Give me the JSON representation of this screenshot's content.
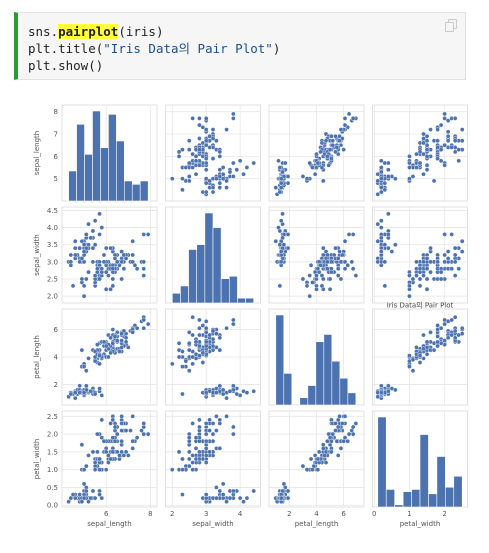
{
  "code": {
    "line1": {
      "pre": "sns.",
      "highlight": "pairplot",
      "post": "(iris)"
    },
    "line2": {
      "pre": "plt.title(",
      "string": "\"Iris Data의 Pair Plot\"",
      "post": ")"
    },
    "line3": "plt.show()",
    "copy_icon": "copy-icon",
    "accent_color": "#2b9a3a"
  },
  "chart_data": {
    "type": "scatter",
    "title": "Iris Data의 Pair Plot",
    "variables": [
      "sepal_length",
      "sepal_width",
      "petal_length",
      "petal_width"
    ],
    "marker_color": "#4c72b0",
    "grid": true,
    "ranges": {
      "sepal_length": [
        4.0,
        8.3
      ],
      "sepal_width": [
        1.8,
        4.6
      ],
      "petal_length": [
        0.5,
        7.5
      ],
      "petal_width": [
        -0.05,
        2.65
      ]
    },
    "ticks": {
      "sepal_length": [
        5,
        6,
        7,
        8
      ],
      "sepal_width": [
        2.0,
        2.5,
        3.0,
        3.5,
        4.0,
        4.5
      ],
      "petal_length": [
        2,
        4,
        6
      ],
      "petal_width": [
        0.0,
        0.5,
        1.0,
        1.5,
        2.0,
        2.5
      ]
    },
    "x_ticks": {
      "sepal_length": [
        6,
        8
      ],
      "sepal_width": [
        2,
        3,
        4
      ],
      "petal_length": [
        2,
        4,
        6
      ],
      "petal_width": [
        0,
        1,
        2
      ]
    },
    "tick_labels": {
      "sepal_length": [
        "5",
        "6",
        "7",
        "8"
      ],
      "sepal_width": [
        "2.0",
        "2.5",
        "3.0",
        "3.5",
        "4.0",
        "4.5"
      ],
      "petal_length": [
        "2",
        "4",
        "6"
      ],
      "petal_width": [
        "0.0",
        "0.5",
        "1.0",
        "1.5",
        "2.0",
        "2.5"
      ]
    },
    "x_tick_labels": {
      "sepal_length": [
        "6",
        "8"
      ],
      "sepal_width": [
        "2",
        "3",
        "4"
      ],
      "petal_length": [
        "2",
        "4",
        "6"
      ],
      "petal_width": [
        "0",
        "1",
        "2"
      ]
    },
    "histograms": {
      "sepal_length": {
        "bins": [
          4.3,
          4.66,
          5.02,
          5.38,
          5.74,
          6.1,
          6.46,
          6.82,
          7.18,
          7.54,
          7.9
        ],
        "counts": [
          9,
          23,
          14,
          27,
          16,
          26,
          18,
          6,
          5,
          6
        ]
      },
      "sepal_width": {
        "bins": [
          2.0,
          2.24,
          2.48,
          2.72,
          2.96,
          3.2,
          3.44,
          3.68,
          3.92,
          4.16,
          4.4
        ],
        "counts": [
          4,
          7,
          22,
          24,
          37,
          31,
          10,
          11,
          2,
          2
        ]
      },
      "petal_length": {
        "bins": [
          1.0,
          1.59,
          2.18,
          2.77,
          3.36,
          3.95,
          4.54,
          5.13,
          5.72,
          6.31,
          6.9
        ],
        "counts": [
          37,
          13,
          0,
          3,
          8,
          26,
          29,
          18,
          11,
          5
        ]
      },
      "petal_width": {
        "bins": [
          0.1,
          0.34,
          0.58,
          0.82,
          1.06,
          1.3,
          1.54,
          1.78,
          2.02,
          2.26,
          2.5
        ],
        "counts": [
          41,
          8,
          1,
          7,
          8,
          33,
          6,
          23,
          9,
          14
        ]
      }
    },
    "points": [
      [
        5.1,
        3.5,
        1.4,
        0.2
      ],
      [
        4.9,
        3.0,
        1.4,
        0.2
      ],
      [
        4.7,
        3.2,
        1.3,
        0.2
      ],
      [
        4.6,
        3.1,
        1.5,
        0.2
      ],
      [
        5.0,
        3.6,
        1.4,
        0.2
      ],
      [
        5.4,
        3.9,
        1.7,
        0.4
      ],
      [
        4.6,
        3.4,
        1.4,
        0.3
      ],
      [
        5.0,
        3.4,
        1.5,
        0.2
      ],
      [
        4.4,
        2.9,
        1.4,
        0.2
      ],
      [
        4.9,
        3.1,
        1.5,
        0.1
      ],
      [
        5.4,
        3.7,
        1.5,
        0.2
      ],
      [
        4.8,
        3.4,
        1.6,
        0.2
      ],
      [
        4.8,
        3.0,
        1.4,
        0.1
      ],
      [
        4.3,
        3.0,
        1.1,
        0.1
      ],
      [
        5.8,
        4.0,
        1.2,
        0.2
      ],
      [
        5.7,
        4.4,
        1.5,
        0.4
      ],
      [
        5.4,
        3.9,
        1.3,
        0.4
      ],
      [
        5.1,
        3.5,
        1.4,
        0.3
      ],
      [
        5.7,
        3.8,
        1.7,
        0.3
      ],
      [
        5.1,
        3.8,
        1.5,
        0.3
      ],
      [
        5.4,
        3.4,
        1.7,
        0.2
      ],
      [
        5.1,
        3.7,
        1.5,
        0.4
      ],
      [
        4.6,
        3.6,
        1.0,
        0.2
      ],
      [
        5.1,
        3.3,
        1.7,
        0.5
      ],
      [
        4.8,
        3.4,
        1.9,
        0.2
      ],
      [
        5.0,
        3.0,
        1.6,
        0.2
      ],
      [
        5.0,
        3.4,
        1.6,
        0.4
      ],
      [
        5.2,
        3.5,
        1.5,
        0.2
      ],
      [
        5.2,
        3.4,
        1.4,
        0.2
      ],
      [
        4.7,
        3.2,
        1.6,
        0.2
      ],
      [
        4.8,
        3.1,
        1.6,
        0.2
      ],
      [
        5.4,
        3.4,
        1.5,
        0.4
      ],
      [
        5.2,
        4.1,
        1.5,
        0.1
      ],
      [
        5.5,
        4.2,
        1.4,
        0.2
      ],
      [
        4.9,
        3.1,
        1.5,
        0.2
      ],
      [
        5.0,
        3.2,
        1.2,
        0.2
      ],
      [
        5.5,
        3.5,
        1.3,
        0.2
      ],
      [
        4.9,
        3.6,
        1.4,
        0.1
      ],
      [
        4.4,
        3.0,
        1.3,
        0.2
      ],
      [
        5.1,
        3.4,
        1.5,
        0.2
      ],
      [
        5.0,
        3.5,
        1.3,
        0.3
      ],
      [
        4.5,
        2.3,
        1.3,
        0.3
      ],
      [
        4.4,
        3.2,
        1.3,
        0.2
      ],
      [
        5.0,
        3.5,
        1.6,
        0.6
      ],
      [
        5.1,
        3.8,
        1.9,
        0.4
      ],
      [
        4.8,
        3.0,
        1.4,
        0.3
      ],
      [
        5.1,
        3.8,
        1.6,
        0.2
      ],
      [
        4.6,
        3.2,
        1.4,
        0.2
      ],
      [
        5.3,
        3.7,
        1.5,
        0.2
      ],
      [
        5.0,
        3.3,
        1.4,
        0.2
      ],
      [
        7.0,
        3.2,
        4.7,
        1.4
      ],
      [
        6.4,
        3.2,
        4.5,
        1.5
      ],
      [
        6.9,
        3.1,
        4.9,
        1.5
      ],
      [
        5.5,
        2.3,
        4.0,
        1.3
      ],
      [
        6.5,
        2.8,
        4.6,
        1.5
      ],
      [
        5.7,
        2.8,
        4.5,
        1.3
      ],
      [
        6.3,
        3.3,
        4.7,
        1.6
      ],
      [
        4.9,
        2.4,
        3.3,
        1.0
      ],
      [
        6.6,
        2.9,
        4.6,
        1.3
      ],
      [
        5.2,
        2.7,
        3.9,
        1.4
      ],
      [
        5.0,
        2.0,
        3.5,
        1.0
      ],
      [
        5.9,
        3.0,
        4.2,
        1.5
      ],
      [
        6.0,
        2.2,
        4.0,
        1.0
      ],
      [
        6.1,
        2.9,
        4.7,
        1.4
      ],
      [
        5.6,
        2.9,
        3.6,
        1.3
      ],
      [
        6.7,
        3.1,
        4.4,
        1.4
      ],
      [
        5.6,
        3.0,
        4.5,
        1.5
      ],
      [
        5.8,
        2.7,
        4.1,
        1.0
      ],
      [
        6.2,
        2.2,
        4.5,
        1.5
      ],
      [
        5.6,
        2.5,
        3.9,
        1.1
      ],
      [
        5.9,
        3.2,
        4.8,
        1.8
      ],
      [
        6.1,
        2.8,
        4.0,
        1.3
      ],
      [
        6.3,
        2.5,
        4.9,
        1.5
      ],
      [
        6.1,
        2.8,
        4.7,
        1.2
      ],
      [
        6.4,
        2.9,
        4.3,
        1.3
      ],
      [
        6.6,
        3.0,
        4.4,
        1.4
      ],
      [
        6.8,
        2.8,
        4.8,
        1.4
      ],
      [
        6.7,
        3.0,
        5.0,
        1.7
      ],
      [
        6.0,
        2.9,
        4.5,
        1.5
      ],
      [
        5.7,
        2.6,
        3.5,
        1.0
      ],
      [
        5.5,
        2.4,
        3.8,
        1.1
      ],
      [
        5.5,
        2.4,
        3.7,
        1.0
      ],
      [
        5.8,
        2.7,
        3.9,
        1.2
      ],
      [
        6.0,
        2.7,
        5.1,
        1.6
      ],
      [
        5.4,
        3.0,
        4.5,
        1.5
      ],
      [
        6.0,
        3.4,
        4.5,
        1.6
      ],
      [
        6.7,
        3.1,
        4.7,
        1.5
      ],
      [
        6.3,
        2.3,
        4.4,
        1.3
      ],
      [
        5.6,
        3.0,
        4.1,
        1.3
      ],
      [
        5.5,
        2.5,
        4.0,
        1.3
      ],
      [
        5.5,
        2.6,
        4.4,
        1.2
      ],
      [
        6.1,
        3.0,
        4.6,
        1.4
      ],
      [
        5.8,
        2.6,
        4.0,
        1.2
      ],
      [
        5.0,
        2.3,
        3.3,
        1.0
      ],
      [
        5.6,
        2.7,
        4.2,
        1.3
      ],
      [
        5.7,
        3.0,
        4.2,
        1.2
      ],
      [
        5.7,
        2.9,
        4.2,
        1.3
      ],
      [
        6.2,
        2.9,
        4.3,
        1.3
      ],
      [
        5.1,
        2.5,
        3.0,
        1.1
      ],
      [
        5.7,
        2.8,
        4.1,
        1.3
      ],
      [
        6.3,
        3.3,
        6.0,
        2.5
      ],
      [
        5.8,
        2.7,
        5.1,
        1.9
      ],
      [
        7.1,
        3.0,
        5.9,
        2.1
      ],
      [
        6.3,
        2.9,
        5.6,
        1.8
      ],
      [
        6.5,
        3.0,
        5.8,
        2.2
      ],
      [
        7.6,
        3.0,
        6.6,
        2.1
      ],
      [
        4.9,
        2.5,
        4.5,
        1.7
      ],
      [
        7.3,
        2.9,
        6.3,
        1.8
      ],
      [
        6.7,
        2.5,
        5.8,
        1.8
      ],
      [
        7.2,
        3.6,
        6.1,
        2.5
      ],
      [
        6.5,
        3.2,
        5.1,
        2.0
      ],
      [
        6.4,
        2.7,
        5.3,
        1.9
      ],
      [
        6.8,
        3.0,
        5.5,
        2.1
      ],
      [
        5.7,
        2.5,
        5.0,
        2.0
      ],
      [
        5.8,
        2.8,
        5.1,
        2.4
      ],
      [
        6.4,
        3.2,
        5.3,
        2.3
      ],
      [
        6.5,
        3.0,
        5.5,
        1.8
      ],
      [
        7.7,
        3.8,
        6.7,
        2.2
      ],
      [
        7.7,
        2.6,
        6.9,
        2.3
      ],
      [
        6.0,
        2.2,
        5.0,
        1.5
      ],
      [
        6.9,
        3.2,
        5.7,
        2.3
      ],
      [
        5.6,
        2.8,
        4.9,
        2.0
      ],
      [
        7.7,
        2.8,
        6.7,
        2.0
      ],
      [
        6.3,
        2.7,
        4.9,
        1.8
      ],
      [
        6.7,
        3.3,
        5.7,
        2.1
      ],
      [
        7.2,
        3.2,
        6.0,
        1.8
      ],
      [
        6.2,
        2.8,
        4.8,
        1.8
      ],
      [
        6.1,
        3.0,
        4.9,
        1.8
      ],
      [
        6.4,
        2.8,
        5.6,
        2.1
      ],
      [
        7.2,
        3.0,
        5.8,
        1.6
      ],
      [
        7.4,
        2.8,
        6.1,
        1.9
      ],
      [
        7.9,
        3.8,
        6.4,
        2.0
      ],
      [
        6.4,
        2.8,
        5.6,
        2.2
      ],
      [
        6.3,
        2.8,
        5.1,
        1.5
      ],
      [
        6.1,
        2.6,
        5.6,
        1.4
      ],
      [
        7.7,
        3.0,
        6.1,
        2.3
      ],
      [
        6.3,
        3.4,
        5.6,
        2.4
      ],
      [
        6.4,
        3.1,
        5.5,
        1.8
      ],
      [
        6.0,
        3.0,
        4.8,
        1.8
      ],
      [
        6.9,
        3.1,
        5.4,
        2.1
      ],
      [
        6.7,
        3.1,
        5.6,
        2.4
      ],
      [
        6.9,
        3.1,
        5.1,
        2.3
      ],
      [
        5.8,
        2.7,
        5.1,
        1.9
      ],
      [
        6.8,
        3.2,
        5.9,
        2.3
      ],
      [
        6.7,
        3.3,
        5.7,
        2.5
      ],
      [
        6.7,
        3.0,
        5.2,
        2.3
      ],
      [
        6.3,
        2.5,
        5.0,
        1.9
      ],
      [
        6.5,
        3.0,
        5.2,
        2.0
      ],
      [
        6.2,
        3.4,
        5.4,
        2.3
      ],
      [
        5.9,
        3.0,
        5.1,
        1.8
      ]
    ]
  }
}
